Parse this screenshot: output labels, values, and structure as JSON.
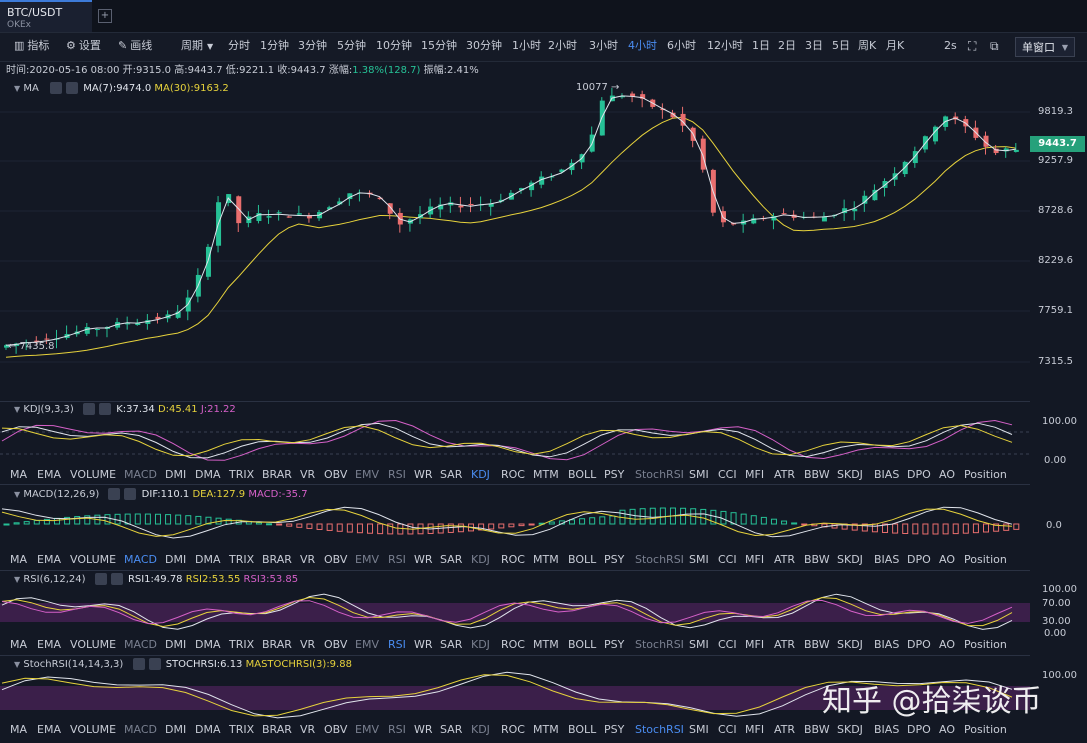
{
  "tab": {
    "symbol": "BTC/USDT",
    "exchange": "OKEx",
    "add": "+"
  },
  "toolbar": {
    "indicator": "指标",
    "settings": "设置",
    "draw": "画线",
    "period": "周期",
    "intervals": [
      "分时",
      "1分钟",
      "3分钟",
      "5分钟",
      "10分钟",
      "15分钟",
      "30分钟",
      "1小时",
      "2小时",
      "3小时",
      "4小时",
      "6小时",
      "12小时",
      "1日",
      "2日",
      "3日",
      "5日",
      "周K",
      "月K"
    ],
    "active_interval": "4小时",
    "refresh": "2s",
    "window": "单窗口"
  },
  "info": {
    "time": "时间:2020-05-16 08:00",
    "open": "开:9315.0",
    "high": "高:9443.7",
    "low": "低:9221.1",
    "close": "收:9443.7",
    "change_label": "涨幅:",
    "change_value": "1.38%(128.7)",
    "amplitude": "振幅:2.41%"
  },
  "main": {
    "ma_label": "MA",
    "ma7": "MA(7):9474.0",
    "ma30": "MA(30):9163.2",
    "price_axis": [
      "9819.3",
      "9257.9",
      "8728.6",
      "8229.6",
      "7759.1",
      "7315.5"
    ],
    "current_price": "9443.7",
    "high_mark": "10077 →",
    "low_mark": "← 7435.8",
    "colors": {
      "up": "#26c196",
      "down": "#e96e6e",
      "ma7": "#e0e4ec",
      "ma30": "#e6d23c"
    }
  },
  "indicators": [
    "MA",
    "EMA",
    "VOLUME",
    "MACD",
    "DMI",
    "DMA",
    "TRIX",
    "BRAR",
    "VR",
    "OBV",
    "EMV",
    "RSI",
    "WR",
    "SAR",
    "KDJ",
    "ROC",
    "MTM",
    "BOLL",
    "PSY",
    "StochRSI",
    "SMI",
    "CCI",
    "MFI",
    "ATR",
    "BBW",
    "SKDJ",
    "BIAS",
    "DPO",
    "AO",
    "Position"
  ],
  "kdj": {
    "name": "KDJ(9,3,3)",
    "k": "K:37.34",
    "d": "D:45.41",
    "j": "J:21.22",
    "axis": [
      "100.00",
      "0.00"
    ],
    "active": "KDJ"
  },
  "macd": {
    "name": "MACD(12,26,9)",
    "dif": "DIF:110.1",
    "dea": "DEA:127.9",
    "macd": "MACD:-35.7",
    "axis": [
      "0.0"
    ],
    "active": "MACD"
  },
  "rsi": {
    "name": "RSI(6,12,24)",
    "rsi1": "RSI1:49.78",
    "rsi2": "RSI2:53.55",
    "rsi3": "RSI3:53.85",
    "axis": [
      "100.00",
      "70.00",
      "30.00",
      "0.00"
    ],
    "active": "RSI"
  },
  "stochrsi": {
    "name": "StochRSI(14,14,3,3)",
    "stoch": "STOCHRSI:6.13",
    "ma": "MASTOCHRSI(3):9.88",
    "axis": [
      "100.00"
    ],
    "active": "StochRSI"
  },
  "watermark": "知乎 @拾柒谈币"
}
